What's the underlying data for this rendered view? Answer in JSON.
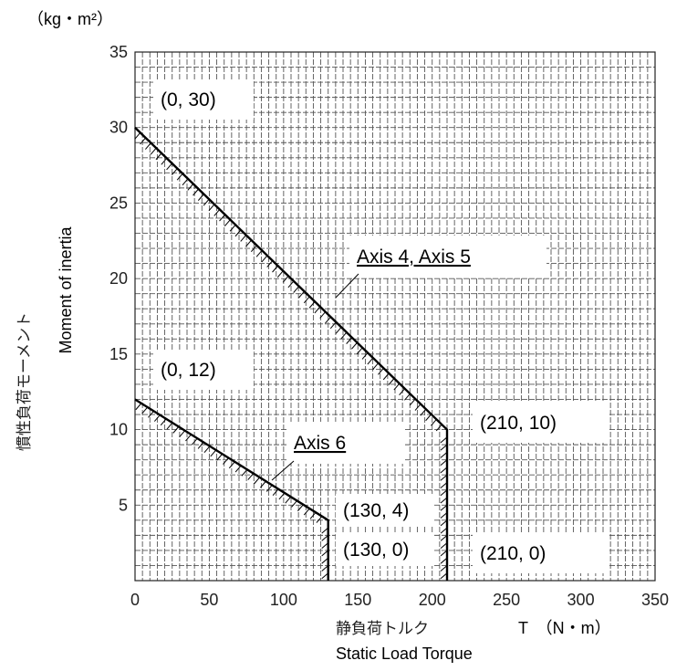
{
  "chart_data": {
    "type": "line",
    "x_unit_label": "T　（N・m）",
    "y_unit_label": "（kg・m²）",
    "xlabel_en": "Static Load Torque",
    "xlabel_jp": "静負荷トルク",
    "ylabel_en": "Moment of inertia",
    "ylabel_jp": "慣性負荷モーメント",
    "xlim": [
      0,
      350
    ],
    "ylim": [
      0,
      35
    ],
    "x_ticks": [
      "0",
      "50",
      "100",
      "150",
      "200",
      "250",
      "300",
      "350"
    ],
    "y_ticks": [
      "5",
      "10",
      "15",
      "20",
      "25",
      "30",
      "35"
    ],
    "grid": true,
    "series": [
      {
        "name": "Axis 4, Axis 5",
        "points": [
          [
            0,
            30
          ],
          [
            210,
            10
          ],
          [
            210,
            0
          ]
        ]
      },
      {
        "name": "Axis 6",
        "points": [
          [
            0,
            12
          ],
          [
            130,
            4
          ],
          [
            130,
            0
          ]
        ]
      }
    ],
    "annotations": [
      {
        "text": "(0, 30)",
        "x": 0,
        "y": 30
      },
      {
        "text": "(0, 12)",
        "x": 0,
        "y": 12
      },
      {
        "text": "(210, 10)",
        "x": 210,
        "y": 10
      },
      {
        "text": "(210, 0)",
        "x": 210,
        "y": 0
      },
      {
        "text": "(130, 4)",
        "x": 130,
        "y": 4
      },
      {
        "text": "(130, 0)",
        "x": 130,
        "y": 0
      }
    ]
  }
}
